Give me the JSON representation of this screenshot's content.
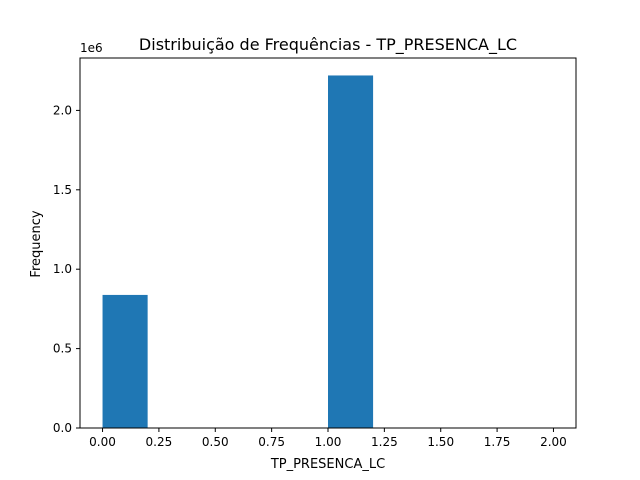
{
  "chart_data": {
    "type": "bar",
    "title": "Distribuição de Frequências - TP_PRESENCA_LC",
    "xlabel": "TP_PRESENCA_LC",
    "ylabel": "Frequency",
    "y_offset_label": "1e6",
    "xlim": [
      -0.1,
      2.1
    ],
    "ylim": [
      0,
      2330000
    ],
    "bin_width": 0.2,
    "bins": [
      {
        "x_start": 0.0,
        "x_end": 0.2,
        "value": 838000
      },
      {
        "x_start": 1.0,
        "x_end": 1.2,
        "value": 2220000
      }
    ],
    "x_ticks": [
      {
        "value": 0.0,
        "label": "0.00"
      },
      {
        "value": 0.25,
        "label": "0.25"
      },
      {
        "value": 0.5,
        "label": "0.50"
      },
      {
        "value": 0.75,
        "label": "0.75"
      },
      {
        "value": 1.0,
        "label": "1.00"
      },
      {
        "value": 1.25,
        "label": "1.25"
      },
      {
        "value": 1.5,
        "label": "1.50"
      },
      {
        "value": 1.75,
        "label": "1.75"
      },
      {
        "value": 2.0,
        "label": "2.00"
      }
    ],
    "y_ticks": [
      {
        "value": 0,
        "label": "0.0"
      },
      {
        "value": 500000,
        "label": "0.5"
      },
      {
        "value": 1000000,
        "label": "1.0"
      },
      {
        "value": 1500000,
        "label": "1.5"
      },
      {
        "value": 2000000,
        "label": "2.0"
      }
    ],
    "bar_color": "#1f77b4",
    "grid": false,
    "legend": false
  }
}
